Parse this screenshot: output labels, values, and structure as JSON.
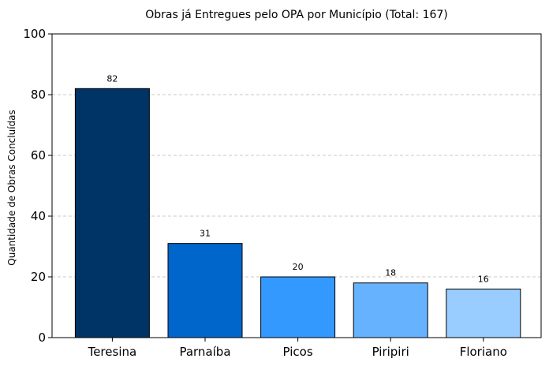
{
  "chart_data": {
    "type": "bar",
    "title": "Obras já Entregues pelo OPA por Município (Total: 167)",
    "xlabel": "",
    "ylabel": "Quantidade de Obras Concluídas",
    "categories": [
      "Teresina",
      "Parnaíba",
      "Picos",
      "Piripiri",
      "Floriano"
    ],
    "values": [
      82,
      31,
      20,
      18,
      16
    ],
    "colors": [
      "#003366",
      "#0066cc",
      "#3399ff",
      "#66b2ff",
      "#99ccff"
    ],
    "data_labels": [
      "82",
      "31",
      "20",
      "18",
      "16"
    ],
    "ylim": [
      0,
      100
    ],
    "yticks": [
      "0",
      "20",
      "40",
      "60",
      "80",
      "100"
    ],
    "grid": "horizontal-dashed",
    "legend": "none"
  }
}
